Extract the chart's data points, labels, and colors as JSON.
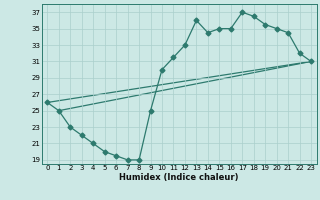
{
  "title": "",
  "xlabel": "Humidex (Indice chaleur)",
  "bg_color": "#cce8e5",
  "grid_color": "#aacfcc",
  "line_color": "#2d7a6e",
  "xlim": [
    -0.5,
    23.5
  ],
  "ylim": [
    18.5,
    38.0
  ],
  "xticks": [
    0,
    1,
    2,
    3,
    4,
    5,
    6,
    7,
    8,
    9,
    10,
    11,
    12,
    13,
    14,
    15,
    16,
    17,
    18,
    19,
    20,
    21,
    22,
    23
  ],
  "yticks": [
    19,
    21,
    23,
    25,
    27,
    29,
    31,
    33,
    35,
    37
  ],
  "line1_x": [
    0,
    1,
    2,
    3,
    4,
    5,
    6,
    7,
    8,
    9,
    10,
    11,
    12,
    13,
    14,
    15,
    16,
    17,
    18,
    19,
    20,
    21,
    22,
    23
  ],
  "line1_y": [
    26,
    25,
    23,
    22,
    21,
    20,
    19.5,
    19,
    19,
    25,
    30,
    31.5,
    33,
    36,
    34.5,
    35,
    35,
    37,
    36.5,
    35.5,
    35,
    34.5,
    32,
    31
  ],
  "line2_x": [
    0,
    23
  ],
  "line2_y": [
    26,
    31
  ],
  "line3_x": [
    1,
    23
  ],
  "line3_y": [
    25,
    31
  ],
  "marker_size": 2.5
}
